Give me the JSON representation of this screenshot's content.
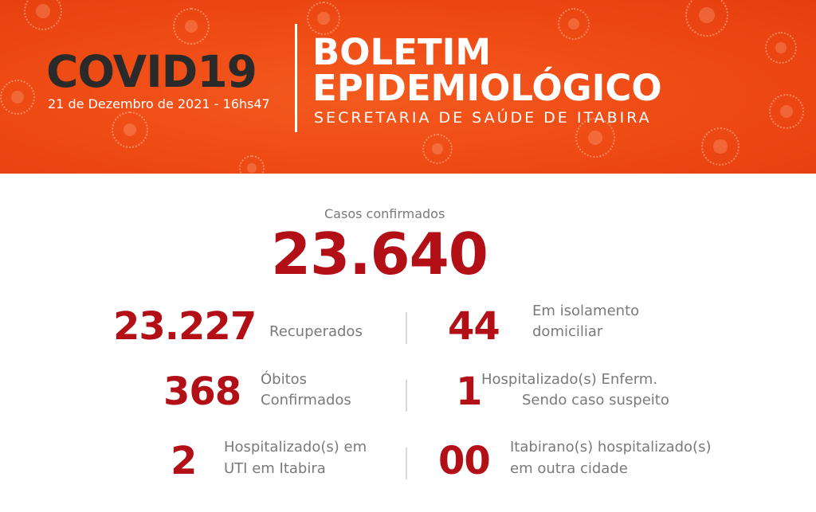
{
  "header": {
    "covid_title": "COVID19",
    "date": "21 de Dezembro de 2021 - 16hs47",
    "boletim_line1": "BOLETIM",
    "boletim_line2": "EPIDEMIOLÓGICO",
    "secretaria": "SECRETARIA DE SAÚDE DE ITABIRA"
  },
  "confirmed": {
    "label": "Casos confirmados",
    "value": "23.640"
  },
  "stats": {
    "recovered": {
      "value": "23.227",
      "label": "Recuperados"
    },
    "home_isolation": {
      "value": "44",
      "label_line1": "Em isolamento",
      "label_line2": "domiciliar"
    },
    "deaths": {
      "value": "368",
      "label_line1": "Óbitos",
      "label_line2": "Confirmados"
    },
    "hospitalized_ward": {
      "value": "1",
      "label_line1": "Hospitalizado(s) Enferm.",
      "label_line2": "Sendo caso suspeito"
    },
    "hospitalized_icu": {
      "value": "2",
      "label_line1": "Hospitalizado(s) em",
      "label_line2": "UTI em Itabira"
    },
    "hospitalized_other_city": {
      "value": "00",
      "label_line1": "Itabirano(s) hospitalizado(s)",
      "label_line2": "em outra cidade"
    }
  },
  "colors": {
    "banner": "#ee4a14",
    "numbers": "#b30f16",
    "labels": "#7a7a7a",
    "title_dark": "#2a2a2a"
  }
}
